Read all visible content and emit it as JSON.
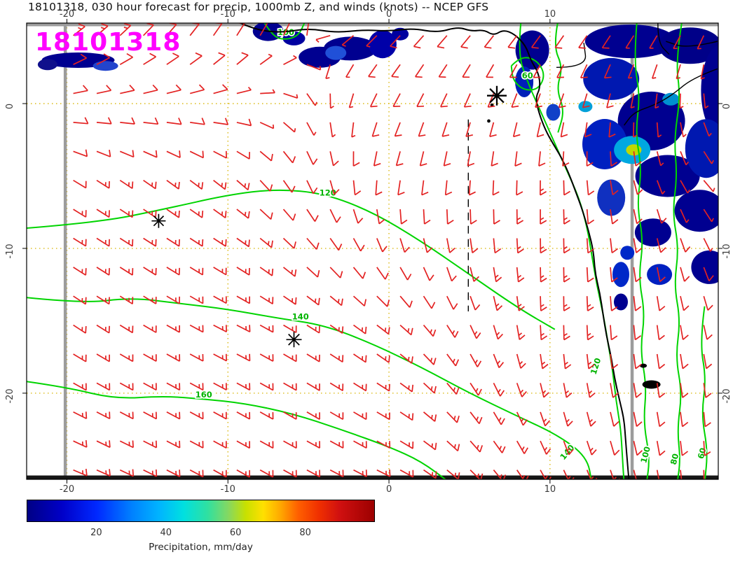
{
  "figure": {
    "title": "18101318, 030 hour forecast for precip, 1000mb Z, and winds (knots) -- NCEP GFS",
    "stamp": "18101318",
    "stamp_color": "#ff00ff"
  },
  "chart_data": {
    "type": "heatmap",
    "title": "18101318, 030 hour forecast for precip, 1000mb Z, and winds (knots) -- NCEP GFS",
    "model": "NCEP GFS",
    "run": "18101318",
    "forecast_hour": 30,
    "fields": [
      "precipitation shading (mm/day)",
      "1000mb geopotential height contours",
      "wind barbs (knots)"
    ],
    "axes": {
      "lon_range": [
        -22.5,
        20.45
      ],
      "lat_range": [
        -25.95,
        5.56
      ],
      "x_ticks": [
        -20,
        -10,
        0,
        10
      ],
      "y_ticks": [
        0,
        -10,
        -20
      ],
      "grid": true,
      "grid_color": "#d8b400",
      "domain_box_lons": [
        -20.1,
        15.1
      ],
      "tick_label_color": "#3a3a3a",
      "frame_color": "#000000"
    },
    "colorbar": {
      "label": "Precipitation, mm/day",
      "range": [
        0,
        100
      ],
      "ticks": [
        20,
        40,
        60,
        80
      ],
      "stops": [
        [
          0,
          "#000085"
        ],
        [
          10,
          "#0000c8"
        ],
        [
          20,
          "#0028ff"
        ],
        [
          30,
          "#0080ff"
        ],
        [
          38,
          "#00b4ff"
        ],
        [
          45,
          "#00e0e0"
        ],
        [
          52,
          "#30e0a0"
        ],
        [
          58,
          "#86d860"
        ],
        [
          63,
          "#c8e000"
        ],
        [
          68,
          "#ffe000"
        ],
        [
          73,
          "#ffa800"
        ],
        [
          78,
          "#ff6000"
        ],
        [
          84,
          "#f03000"
        ],
        [
          90,
          "#d01010"
        ],
        [
          100,
          "#9c0000"
        ]
      ]
    },
    "contour_color": "#00d400",
    "contours": [
      {
        "label": "120",
        "label_positions": [
          [
            -3.8,
            -6.35,
            0
          ]
        ],
        "points": [
          [
            -22.5,
            -8.6
          ],
          [
            -18,
            -8.2
          ],
          [
            -14,
            -7.3
          ],
          [
            -10,
            -6.3
          ],
          [
            -7,
            -5.9
          ],
          [
            -4,
            -6.2
          ],
          [
            -1,
            -7.5
          ],
          [
            2,
            -9.5
          ],
          [
            5,
            -11.8
          ],
          [
            8,
            -14.1
          ],
          [
            10.3,
            -15.6
          ]
        ]
      },
      {
        "label": "140",
        "label_positions": [
          [
            -5.5,
            -14.9,
            0
          ],
          [
            11.2,
            -24.2,
            -50
          ]
        ],
        "points": [
          [
            -22.5,
            -13.4
          ],
          [
            -19,
            -13.8
          ],
          [
            -16,
            -13.4
          ],
          [
            -13,
            -13.8
          ],
          [
            -10,
            -14.2
          ],
          [
            -7,
            -14.8
          ],
          [
            -4,
            -15.3
          ],
          [
            -1,
            -16.6
          ],
          [
            2,
            -18.2
          ],
          [
            5,
            -20
          ],
          [
            8,
            -21.6
          ],
          [
            10.5,
            -22.9
          ],
          [
            12.3,
            -24.4
          ],
          [
            12.6,
            -26.2
          ]
        ]
      },
      {
        "label": "160",
        "label_positions": [
          [
            -11.5,
            -20.3,
            0
          ]
        ],
        "points": [
          [
            -22.5,
            -19.2
          ],
          [
            -20,
            -19.6
          ],
          [
            -17,
            -20.4
          ],
          [
            -14,
            -20.2
          ],
          [
            -11.5,
            -20.4
          ],
          [
            -9,
            -20.7
          ],
          [
            -6,
            -21.4
          ],
          [
            -3,
            -22.5
          ],
          [
            0,
            -23.7
          ],
          [
            2,
            -24.7
          ],
          [
            3.8,
            -26.2
          ]
        ]
      },
      {
        "label": "100",
        "label_positions": [
          [
            -6.4,
            4.75,
            0
          ]
        ],
        "points": [
          [
            -7.8,
            5.7
          ],
          [
            -7.2,
            4.6
          ],
          [
            -6.4,
            4.4
          ],
          [
            -5.6,
            4.7
          ],
          [
            -5.2,
            5.7
          ]
        ]
      },
      {
        "label": "60",
        "label_positions": [
          [
            8.6,
            1.75,
            0
          ]
        ],
        "points": [
          [
            7.6,
            2.6
          ],
          [
            8.2,
            3.3
          ],
          [
            9.2,
            3
          ],
          [
            9.7,
            2
          ],
          [
            9.3,
            1
          ],
          [
            8.4,
            0.9
          ],
          [
            7.7,
            1.6
          ],
          [
            7.6,
            2.6
          ]
        ]
      },
      {
        "label": "120",
        "label_positions": [
          [
            13.0,
            -18.2,
            -72
          ]
        ],
        "points": [
          [
            8.2,
            5.7
          ],
          [
            8.0,
            3.5
          ],
          [
            8.6,
            1.5
          ],
          [
            9.4,
            -0.5
          ],
          [
            10.2,
            -2.5
          ],
          [
            11.0,
            -4.5
          ],
          [
            11.8,
            -6.5
          ],
          [
            12.3,
            -8.5
          ],
          [
            12.6,
            -10.5
          ],
          [
            12.9,
            -12.5
          ],
          [
            13.3,
            -14.5
          ],
          [
            13.6,
            -16.5
          ],
          [
            13.9,
            -18.5
          ],
          [
            14.1,
            -20.5
          ],
          [
            14.4,
            -22.5
          ],
          [
            14.5,
            -24.5
          ],
          [
            14.6,
            -26.2
          ]
        ]
      },
      {
        "label": "100",
        "label_positions": [
          [
            16.1,
            -24.3,
            -75
          ]
        ],
        "points": [
          [
            15.4,
            5.7
          ],
          [
            15.2,
            3
          ],
          [
            15.6,
            0.5
          ],
          [
            15.3,
            -2
          ],
          [
            15.7,
            -4.5
          ],
          [
            15.4,
            -7
          ],
          [
            15.8,
            -9.5
          ],
          [
            15.5,
            -12
          ],
          [
            15.9,
            -14.5
          ],
          [
            15.6,
            -17
          ],
          [
            16,
            -19.5
          ],
          [
            15.8,
            -22
          ],
          [
            16.2,
            -24.5
          ],
          [
            16,
            -26.2
          ]
        ]
      },
      {
        "label": "80",
        "label_positions": [
          [
            17.9,
            -24.6,
            -75
          ]
        ],
        "points": [
          [
            18.2,
            5.7
          ],
          [
            17.8,
            3
          ],
          [
            18.1,
            0.5
          ],
          [
            17.7,
            -2.5
          ],
          [
            17.9,
            -5
          ],
          [
            17.6,
            -7.5
          ],
          [
            18,
            -10
          ],
          [
            17.7,
            -12.5
          ],
          [
            18.1,
            -15
          ],
          [
            17.8,
            -17.5
          ],
          [
            18.2,
            -20
          ],
          [
            17.9,
            -22.5
          ],
          [
            18.1,
            -24.6
          ],
          [
            17.9,
            -26.2
          ]
        ]
      },
      {
        "label": "60",
        "label_positions": [
          [
            19.6,
            -24.2,
            -75
          ]
        ],
        "points": [
          [
            19.6,
            -14
          ],
          [
            19.3,
            -16.5
          ],
          [
            19.7,
            -19
          ],
          [
            19.4,
            -21.5
          ],
          [
            19.8,
            -24
          ],
          [
            19.6,
            -26.2
          ]
        ]
      },
      {
        "label": "",
        "label_positions": [],
        "points": [
          [
            10.5,
            5.7
          ],
          [
            10.2,
            4
          ],
          [
            10.8,
            2.5
          ],
          [
            10.4,
            1
          ],
          [
            10.9,
            -0.5
          ],
          [
            10.5,
            -2
          ]
        ]
      }
    ],
    "coastline": {
      "main": [
        [
          -9.3,
          5.6
        ],
        [
          -8.3,
          5.1
        ],
        [
          -6.7,
          4.9
        ],
        [
          -5.0,
          5.2
        ],
        [
          -3.3,
          4.9
        ],
        [
          -1.5,
          5.1
        ],
        [
          0.0,
          5.0
        ],
        [
          1.5,
          5.2
        ],
        [
          3.0,
          4.9
        ],
        [
          4.3,
          5.3
        ],
        [
          5.1,
          5.0
        ],
        [
          5.9,
          5.1
        ],
        [
          6.5,
          4.7
        ],
        [
          7.1,
          5.1
        ],
        [
          7.8,
          4.8
        ],
        [
          8.5,
          4.0
        ],
        [
          8.8,
          3.0
        ],
        [
          9.3,
          2.1
        ],
        [
          9.4,
          1.1
        ],
        [
          9.1,
          0.4
        ],
        [
          9.3,
          -0.6
        ],
        [
          9.7,
          -1.8
        ],
        [
          10.2,
          -2.8
        ],
        [
          10.7,
          -3.7
        ],
        [
          11.2,
          -4.9
        ],
        [
          11.6,
          -6.1
        ],
        [
          12.0,
          -7.3
        ],
        [
          12.4,
          -8.8
        ],
        [
          12.7,
          -10.2
        ],
        [
          12.8,
          -11.7
        ],
        [
          13.1,
          -13.1
        ],
        [
          13.3,
          -14.6
        ],
        [
          13.5,
          -16.0
        ],
        [
          13.8,
          -17.5
        ],
        [
          14.0,
          -18.9
        ],
        [
          14.3,
          -20.4
        ],
        [
          14.6,
          -21.8
        ],
        [
          14.7,
          -23.3
        ],
        [
          14.8,
          -24.7
        ],
        [
          14.9,
          -26.0
        ]
      ],
      "rivers": [
        [
          [
            10.4,
            2.5
          ],
          [
            12.3,
            2.5
          ],
          [
            12.1,
            4.2
          ]
        ],
        [
          [
            20.4,
            2.4
          ],
          [
            18.9,
            1.8
          ],
          [
            17.6,
            0.6
          ],
          [
            16.5,
            -0.1
          ],
          [
            15.2,
            -0.6
          ],
          [
            14.6,
            -1.5
          ]
        ],
        [
          [
            20.4,
            4.3
          ],
          [
            18.5,
            3.8
          ],
          [
            17.2,
            4.3
          ]
        ],
        [
          [
            16.7,
            5.6
          ],
          [
            16.7,
            4.2
          ],
          [
            17.4,
            3.4
          ]
        ]
      ],
      "islands": [
        [
          6.4,
          -0.1
        ],
        [
          6.2,
          -1.2
        ]
      ],
      "lakes": [
        [
          16.3,
          -19.4,
          13,
          6
        ],
        [
          15.8,
          -18.1,
          5,
          3
        ]
      ]
    },
    "precip_blobs": [
      [
        -7.5,
        5.0,
        22,
        14,
        "#000090"
      ],
      [
        -5.9,
        4.5,
        16,
        10,
        "#0000a0"
      ],
      [
        -4.3,
        3.2,
        30,
        15,
        "#000090"
      ],
      [
        -2.4,
        3.8,
        38,
        17,
        "#000090"
      ],
      [
        -3.3,
        3.5,
        15,
        10,
        "#2050d8"
      ],
      [
        -0.4,
        4.1,
        20,
        20,
        "#0000a8"
      ],
      [
        0.7,
        4.8,
        12,
        9,
        "#0000a0"
      ],
      [
        -19.3,
        3.0,
        52,
        11,
        "#000090"
      ],
      [
        -21.2,
        2.7,
        14,
        8,
        "#10108c"
      ],
      [
        -17.6,
        2.6,
        18,
        7,
        "#2244cc"
      ],
      [
        15.0,
        4.3,
        65,
        24,
        "#000090"
      ],
      [
        18.7,
        4.0,
        45,
        26,
        "#000088"
      ],
      [
        20.6,
        0.9,
        28,
        65,
        "#000090"
      ],
      [
        13.8,
        1.7,
        40,
        30,
        "#0018b0"
      ],
      [
        16.3,
        -1.2,
        48,
        42,
        "#000090"
      ],
      [
        13.4,
        -2.8,
        32,
        36,
        "#0020c0"
      ],
      [
        15.1,
        -3.2,
        26,
        20,
        "#00a8e0"
      ],
      [
        15.2,
        -3.2,
        11,
        8,
        "#c0d800"
      ],
      [
        17.3,
        -5.0,
        46,
        30,
        "#000090"
      ],
      [
        19.3,
        -7.4,
        36,
        30,
        "#000090"
      ],
      [
        19.7,
        -3.1,
        30,
        42,
        "#0018b0"
      ],
      [
        13.8,
        -6.5,
        20,
        26,
        "#1030c0"
      ],
      [
        16.4,
        -8.9,
        26,
        20,
        "#000090"
      ],
      [
        19.9,
        -11.3,
        26,
        24,
        "#000090"
      ],
      [
        16.8,
        -11.8,
        18,
        15,
        "#0020c0"
      ],
      [
        14.4,
        -11.8,
        12,
        18,
        "#0028c8"
      ],
      [
        14.4,
        -13.7,
        10,
        12,
        "#000090"
      ],
      [
        14.8,
        -10.3,
        10,
        10,
        "#0028c8"
      ],
      [
        12.2,
        -0.2,
        10,
        8,
        "#00a0d8"
      ],
      [
        17.5,
        0.3,
        12,
        9,
        "#0090d0"
      ],
      [
        8.9,
        3.7,
        24,
        28,
        "#000090"
      ],
      [
        8.4,
        1.5,
        13,
        22,
        "#0020b8"
      ],
      [
        10.2,
        -0.6,
        10,
        12,
        "#1040c8"
      ]
    ],
    "wind_field": {
      "color": "#e32222",
      "grid_lons": [
        -20,
        -10,
        0,
        10,
        20
      ],
      "grid_lats": [
        5,
        -5,
        -15,
        -25
      ],
      "u": [
        [
          -5,
          -3,
          3,
          3,
          1
        ],
        [
          -5,
          -5,
          1,
          0,
          -2
        ],
        [
          -6,
          -6,
          -5,
          0,
          -1
        ],
        [
          -7,
          -7,
          -6,
          -3,
          0
        ]
      ],
      "v": [
        [
          -4,
          -5,
          3,
          4,
          2
        ],
        [
          3,
          4,
          5,
          6,
          2
        ],
        [
          4,
          3,
          4,
          7,
          4
        ],
        [
          3,
          4,
          3,
          6,
          5
        ]
      ],
      "lon_start": -19.6,
      "lon_end": 19.6,
      "lon_step": 1.45,
      "lat_start": 4.7,
      "lat_end": -25.3,
      "lat_step": -2,
      "kt_scale": 2.2
    },
    "markers": [
      {
        "lon": -14.3,
        "lat": -8.1,
        "size": 10,
        "lw": 1.7
      },
      {
        "lon": -5.9,
        "lat": -16.3,
        "size": 11,
        "lw": 1.7
      },
      {
        "lon": 6.7,
        "lat": 0.55,
        "size": 14,
        "lw": 2.3
      }
    ],
    "dashed_line": {
      "lon": 4.93,
      "lat1": -1.1,
      "lat2": -14.35
    }
  }
}
